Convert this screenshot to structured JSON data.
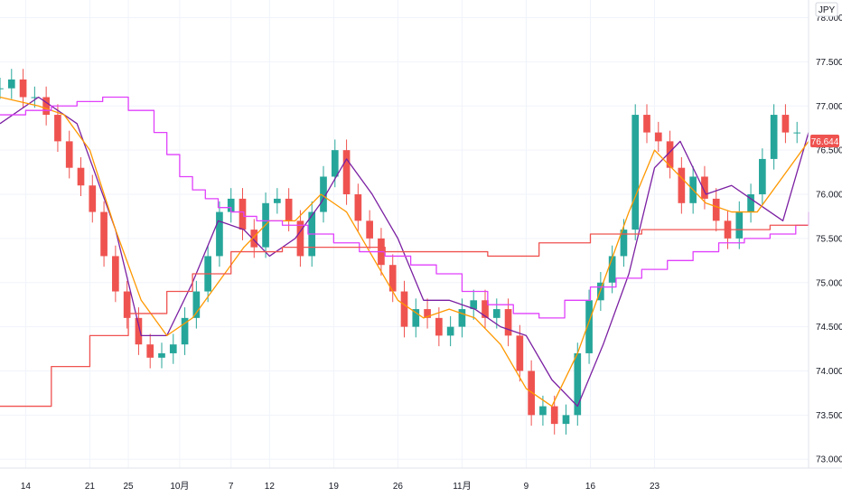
{
  "currency_label": "JPY",
  "last_price_label": "76.644",
  "colors": {
    "up": "#26a69a",
    "down": "#ef5350",
    "ma_orange": "#ff9800",
    "ma_purple": "#7b1fa2",
    "step_magenta": "#e040fb",
    "step_red": "#ef5350",
    "price_tag": "#ef5350"
  },
  "chart_data": {
    "type": "line",
    "y_axis": {
      "min": 72.9,
      "max": 78.2,
      "ticks": [
        "78.000",
        "77.500",
        "77.000",
        "76.500",
        "76.000",
        "75.500",
        "75.000",
        "74.500",
        "74.000",
        "73.500",
        "73.000"
      ]
    },
    "x_axis": {
      "min": 0,
      "max": 63,
      "ticks": [
        {
          "x": 2,
          "label": "14"
        },
        {
          "x": 7,
          "label": "21"
        },
        {
          "x": 10,
          "label": "25"
        },
        {
          "x": 14,
          "label": "10月"
        },
        {
          "x": 18,
          "label": "7"
        },
        {
          "x": 21,
          "label": "12"
        },
        {
          "x": 26,
          "label": "19"
        },
        {
          "x": 31,
          "label": "26"
        },
        {
          "x": 36,
          "label": "11月"
        },
        {
          "x": 41,
          "label": "9"
        },
        {
          "x": 46,
          "label": "16"
        },
        {
          "x": 51,
          "label": "23"
        }
      ]
    },
    "series": [
      {
        "kind": "candles",
        "close": [
          77.2,
          77.3,
          77.1,
          77.1,
          76.9,
          76.6,
          76.3,
          76.1,
          75.8,
          75.3,
          74.9,
          74.6,
          74.3,
          74.15,
          74.2,
          74.3,
          74.6,
          74.9,
          75.3,
          75.8,
          75.95,
          75.6,
          75.4,
          75.9,
          75.95,
          75.7,
          75.3,
          75.8,
          76.2,
          76.5,
          76.0,
          75.7,
          75.5,
          75.2,
          74.9,
          74.5,
          74.7,
          74.6,
          74.4,
          74.5,
          74.7,
          74.8,
          74.6,
          74.7,
          74.4,
          74.0,
          73.5,
          73.6,
          73.4,
          73.5,
          74.2,
          74.8,
          75.0,
          75.3,
          75.6,
          76.9,
          76.7,
          76.6,
          76.3,
          75.9,
          76.2,
          75.95,
          75.7,
          75.5,
          75.8,
          76.0,
          76.4,
          76.9,
          76.7,
          76.7
        ],
        "x_start": 0,
        "x_step": 0.9
      },
      {
        "kind": "line",
        "role": "ma_purple",
        "x": [
          0,
          3,
          6,
          9,
          11,
          13,
          15,
          17,
          19,
          21,
          23,
          25,
          27,
          29,
          31,
          33,
          35,
          37,
          39,
          41,
          43,
          45,
          47,
          49,
          51,
          53,
          55,
          57,
          59,
          61,
          63
        ],
        "y": [
          76.8,
          77.1,
          76.8,
          75.6,
          74.4,
          74.4,
          75.0,
          75.7,
          75.6,
          75.3,
          75.5,
          75.9,
          76.4,
          76.0,
          75.5,
          74.8,
          74.8,
          74.7,
          74.5,
          74.4,
          73.9,
          73.6,
          74.3,
          75.1,
          76.3,
          76.6,
          76.0,
          76.1,
          75.9,
          75.7,
          76.7
        ]
      },
      {
        "kind": "line",
        "role": "ma_orange",
        "x": [
          0,
          3,
          5,
          7,
          9,
          11,
          13,
          15,
          17,
          19,
          21,
          23,
          25,
          27,
          29,
          31,
          33,
          35,
          37,
          39,
          41,
          43,
          45,
          47,
          49,
          51,
          53,
          55,
          57,
          59,
          61,
          63
        ],
        "y": [
          77.1,
          77.0,
          76.9,
          76.5,
          75.6,
          74.8,
          74.4,
          74.6,
          75.0,
          75.4,
          75.7,
          75.7,
          76.0,
          75.8,
          75.3,
          74.8,
          74.6,
          74.7,
          74.6,
          74.3,
          73.8,
          73.6,
          74.2,
          75.0,
          75.8,
          76.5,
          76.2,
          75.9,
          75.8,
          75.8,
          76.2,
          76.6
        ]
      },
      {
        "kind": "step",
        "role": "step_magenta",
        "x": [
          0,
          2,
          4,
          6,
          8,
          10,
          12,
          13,
          14,
          15,
          16,
          17,
          18,
          19,
          20,
          22,
          24,
          26,
          28,
          30,
          32,
          34,
          36,
          38,
          40,
          42,
          44,
          46,
          48,
          50,
          52,
          54,
          56,
          58,
          60,
          62,
          63
        ],
        "y": [
          76.9,
          76.95,
          77.0,
          77.05,
          77.1,
          76.95,
          76.7,
          76.45,
          76.2,
          76.05,
          75.95,
          75.85,
          75.8,
          75.75,
          75.7,
          75.65,
          75.55,
          75.45,
          75.35,
          75.3,
          75.2,
          75.1,
          74.9,
          74.75,
          74.65,
          74.6,
          74.8,
          74.95,
          75.05,
          75.15,
          75.25,
          75.35,
          75.45,
          75.5,
          75.55,
          75.65,
          75.8
        ]
      },
      {
        "kind": "step",
        "role": "step_red",
        "x": [
          0,
          1.5,
          4,
          7,
          10,
          13,
          15,
          18,
          22,
          27,
          30,
          34,
          38,
          42,
          46,
          50,
          55,
          60,
          63
        ],
        "y": [
          73.6,
          73.6,
          74.05,
          74.4,
          74.65,
          74.9,
          75.1,
          75.35,
          75.4,
          75.4,
          75.35,
          75.35,
          75.3,
          75.45,
          75.55,
          75.6,
          75.6,
          75.65,
          75.65
        ]
      }
    ],
    "grid": true,
    "legend": "none"
  }
}
